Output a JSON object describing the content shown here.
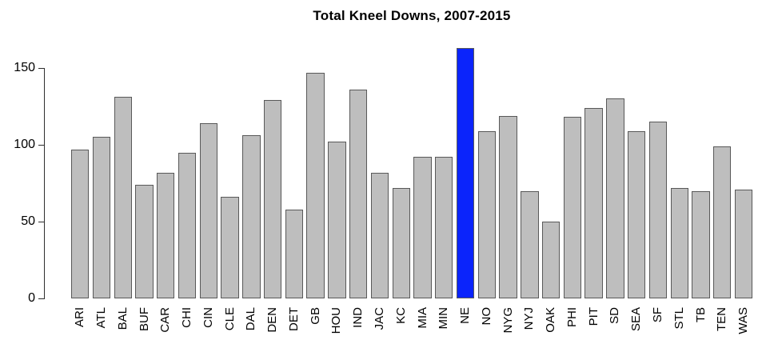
{
  "chart_data": {
    "type": "bar",
    "title": "Total Kneel Downs, 2007-2015",
    "categories": [
      "ARI",
      "ATL",
      "BAL",
      "BUF",
      "CAR",
      "CHI",
      "CIN",
      "CLE",
      "DAL",
      "DEN",
      "DET",
      "GB",
      "HOU",
      "IND",
      "JAC",
      "KC",
      "MIA",
      "MIN",
      "NE",
      "NO",
      "NYG",
      "NYJ",
      "OAK",
      "PHI",
      "PIT",
      "SD",
      "SEA",
      "SF",
      "STL",
      "TB",
      "TEN",
      "WAS"
    ],
    "values": [
      97,
      105,
      131,
      74,
      82,
      95,
      114,
      66,
      106,
      129,
      58,
      147,
      102,
      136,
      82,
      72,
      92,
      92,
      163,
      109,
      119,
      70,
      50,
      118,
      124,
      130,
      109,
      115,
      72,
      70,
      99,
      71
    ],
    "highlight": {
      "category": "NE",
      "color": "#0b24fb"
    },
    "bar_color": "#bebebe",
    "bar_border_color": "#595959",
    "xlabel": "",
    "ylabel": "",
    "y_ticks": [
      0,
      50,
      100,
      150
    ],
    "ylim": [
      0,
      165
    ],
    "grid": false,
    "legend_position": "none"
  }
}
